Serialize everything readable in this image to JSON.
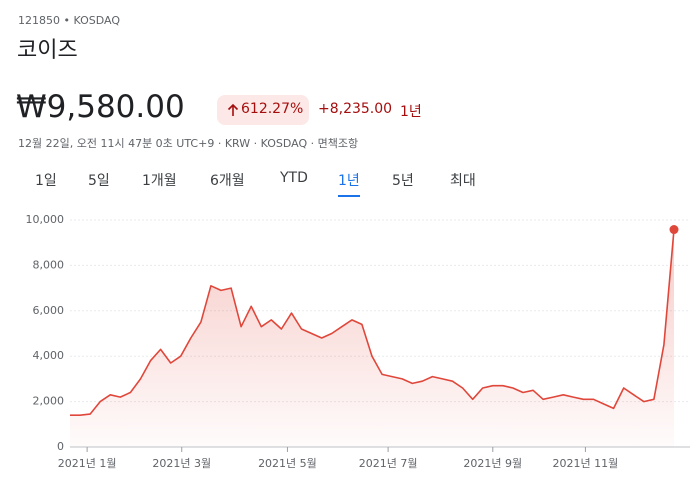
{
  "header": {
    "ticker": "121850 • KOSDAQ",
    "name": "코이즈",
    "price": "₩9,580.00",
    "change_pct": "612.27%",
    "change_abs": "+8,235.00",
    "change_period": "1년",
    "subtitle": "12월 22일, 오전 11시 47분 0초 UTC+9 · KRW · KOSDAQ · 면책조항"
  },
  "tabs": [
    "1일",
    "5일",
    "1개월",
    "6개월",
    "YTD",
    "1년",
    "5년",
    "최대"
  ],
  "chart_data": {
    "type": "line",
    "color": "#e0473b",
    "values": [
      1400,
      1400,
      1450,
      2000,
      2300,
      2200,
      2400,
      3000,
      3800,
      4300,
      3700,
      4000,
      4800,
      5500,
      7100,
      6900,
      7000,
      5300,
      6200,
      5300,
      5600,
      5200,
      5900,
      5200,
      5000,
      4800,
      5000,
      5300,
      5600,
      5400,
      4000,
      3200,
      3100,
      3000,
      2800,
      2900,
      3100,
      3000,
      2900,
      2600,
      2100,
      2600,
      2700,
      2700,
      2600,
      2400,
      2500,
      2100,
      2200,
      2300,
      2200,
      2100,
      2100,
      1900,
      1700,
      2600,
      2300,
      2000,
      2100,
      4500,
      9580
    ],
    "xlim": [
      0,
      60
    ],
    "xticks": [
      {
        "value": 1.7,
        "label": "2021년 1월"
      },
      {
        "value": 11.1,
        "label": "2021년 3월"
      },
      {
        "value": 21.6,
        "label": "2021년 5월"
      },
      {
        "value": 31.6,
        "label": "2021년 7월"
      },
      {
        "value": 42,
        "label": "2021년 9월"
      },
      {
        "value": 51.2,
        "label": "2021년 11월"
      }
    ],
    "ylim": [
      0,
      10000
    ],
    "yticks": [
      0,
      {
        "value": 2000,
        "label": "2,000"
      },
      {
        "value": 4000,
        "label": "4,000"
      },
      {
        "value": 6000,
        "label": "6,000"
      },
      {
        "value": 8000,
        "label": "8,000"
      },
      {
        "value": 10000,
        "label": "10,000"
      }
    ],
    "grid": true
  }
}
